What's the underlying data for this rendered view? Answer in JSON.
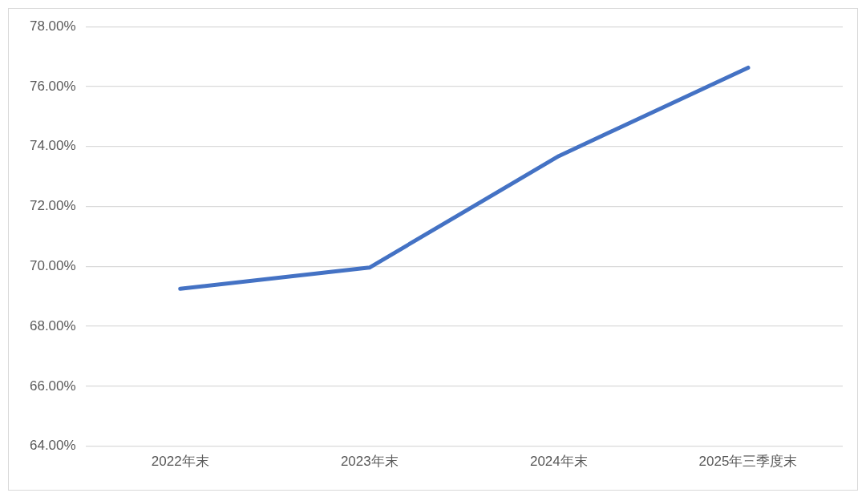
{
  "chart_data": {
    "type": "line",
    "categories": [
      "2022年末",
      "2023年末",
      "2024年末",
      "2025年三季度末"
    ],
    "series": [
      {
        "color": "#4472c4",
        "values": [
          69.25,
          69.96,
          73.68,
          76.63
        ]
      }
    ],
    "ylim": [
      64,
      78
    ],
    "yticks": [
      {
        "value": 64,
        "label": "64.00%"
      },
      {
        "value": 66,
        "label": "66.00%"
      },
      {
        "value": 68,
        "label": "68.00%"
      },
      {
        "value": 70,
        "label": "70.00%"
      },
      {
        "value": 72,
        "label": "72.00%"
      },
      {
        "value": 74,
        "label": "74.00%"
      },
      {
        "value": 76,
        "label": "76.00%"
      },
      {
        "value": 78,
        "label": "78.00%"
      }
    ],
    "grid": "y",
    "legend": false,
    "marker": "none",
    "line_style": "solid"
  }
}
